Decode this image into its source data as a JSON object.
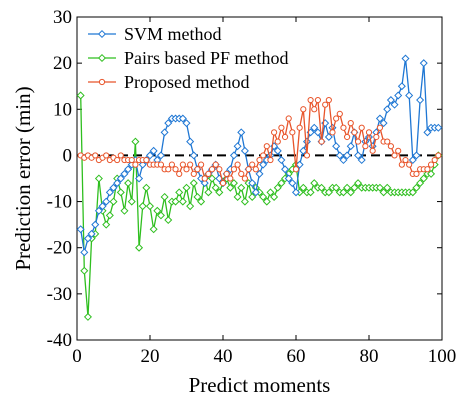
{
  "chart_data": {
    "type": "line",
    "title": "",
    "xlabel": "Predict moments",
    "ylabel": "Prediction error (min)",
    "xlim": [
      0,
      100
    ],
    "ylim": [
      -40,
      30
    ],
    "xticks": [
      0,
      20,
      40,
      60,
      80,
      100
    ],
    "yticks": [
      30,
      20,
      10,
      0,
      -10,
      -20,
      -30,
      -40
    ],
    "grid": false,
    "legend_position": "top-left",
    "reference_line": {
      "y": 0,
      "style": "dashed",
      "color": "#000000"
    },
    "series": [
      {
        "name": "SVM method",
        "color": "#1f77d4",
        "marker": "diamond",
        "x": [
          1,
          2,
          3,
          4,
          5,
          6,
          7,
          8,
          9,
          10,
          11,
          12,
          13,
          14,
          15,
          16,
          17,
          18,
          19,
          20,
          21,
          22,
          23,
          24,
          25,
          26,
          27,
          28,
          29,
          30,
          31,
          32,
          33,
          34,
          35,
          36,
          37,
          38,
          39,
          40,
          41,
          42,
          43,
          44,
          45,
          46,
          47,
          48,
          49,
          50,
          51,
          52,
          53,
          54,
          55,
          56,
          57,
          58,
          59,
          60,
          61,
          62,
          63,
          64,
          65,
          66,
          67,
          68,
          69,
          70,
          71,
          72,
          73,
          74,
          75,
          76,
          77,
          78,
          79,
          80,
          81,
          82,
          83,
          84,
          85,
          86,
          87,
          88,
          89,
          90,
          91,
          92,
          93,
          94,
          95,
          96,
          97,
          98,
          99
        ],
        "y": [
          -16,
          -21,
          -18,
          -17,
          -15,
          -12,
          -11,
          -10,
          -8,
          -7,
          -6,
          -5,
          -4,
          -3,
          -2,
          -1,
          -5,
          -2,
          -1,
          0,
          1,
          -1,
          0,
          5,
          7,
          8,
          8,
          8,
          8,
          7,
          3,
          0,
          -3,
          -5,
          -6,
          -4,
          -3,
          -2,
          -5,
          -6,
          -4,
          -3,
          0,
          2,
          5,
          1,
          -3,
          -6,
          -8,
          -4,
          -2,
          -1,
          0,
          2,
          1,
          -1,
          -3,
          -5,
          -6,
          -8,
          -2,
          1,
          3,
          5,
          6,
          5,
          3,
          7,
          4,
          6,
          2,
          0,
          -1,
          0,
          2,
          5,
          0,
          -1,
          3,
          4,
          2,
          5,
          8,
          7,
          10,
          12,
          11,
          13,
          15,
          21,
          13,
          -1,
          0,
          12,
          20,
          5,
          6,
          6,
          6
        ]
      },
      {
        "name": "Pairs based PF method",
        "color": "#2fbf1f",
        "marker": "diamond",
        "x": [
          1,
          2,
          3,
          4,
          5,
          6,
          7,
          8,
          9,
          10,
          11,
          12,
          13,
          14,
          15,
          16,
          17,
          18,
          19,
          20,
          21,
          22,
          23,
          24,
          25,
          26,
          27,
          28,
          29,
          30,
          31,
          32,
          33,
          34,
          35,
          36,
          37,
          38,
          39,
          40,
          41,
          42,
          43,
          44,
          45,
          46,
          47,
          48,
          49,
          50,
          51,
          52,
          53,
          54,
          55,
          56,
          57,
          58,
          59,
          60,
          61,
          62,
          63,
          64,
          65,
          66,
          67,
          68,
          69,
          70,
          71,
          72,
          73,
          74,
          75,
          76,
          77,
          78,
          79,
          80,
          81,
          82,
          83,
          84,
          85,
          86,
          87,
          88,
          89,
          90,
          91,
          92,
          93,
          94,
          95,
          96,
          97,
          98,
          99
        ],
        "y": [
          13,
          -25,
          -35,
          -18,
          -17,
          -5,
          -12,
          -15,
          -13,
          -10,
          -5,
          -8,
          -12,
          -6,
          -10,
          3,
          -20,
          -11,
          -7,
          -11,
          -16,
          -12,
          -13,
          -9,
          -14,
          -10,
          -10,
          -8,
          -10,
          -7,
          -11,
          -6,
          -9,
          -10,
          -5,
          -8,
          -5,
          -7,
          -8,
          -6,
          -5,
          -7,
          -6,
          -9,
          -7,
          -10,
          -6,
          -9,
          -7,
          -8,
          -9,
          -10,
          -8,
          -9,
          -7,
          -6,
          -5,
          -4,
          -3,
          -2,
          -8,
          -7,
          -8,
          -8,
          -6,
          -7,
          -7,
          -8,
          -8,
          -7,
          -7,
          -8,
          -8,
          -7,
          -8,
          -7,
          -6,
          -7,
          -7,
          -7,
          -7,
          -7,
          -7,
          -8,
          -7,
          -8,
          -8,
          -8,
          -8,
          -8,
          -8,
          -8,
          -7,
          -6,
          -5,
          -4,
          -4,
          -2,
          0
        ]
      },
      {
        "name": "Proposed method",
        "color": "#e8542a",
        "marker": "circle",
        "x": [
          1,
          2,
          3,
          4,
          5,
          6,
          7,
          8,
          9,
          10,
          11,
          12,
          13,
          14,
          15,
          16,
          17,
          18,
          19,
          20,
          21,
          22,
          23,
          24,
          25,
          26,
          27,
          28,
          29,
          30,
          31,
          32,
          33,
          34,
          35,
          36,
          37,
          38,
          39,
          40,
          41,
          42,
          43,
          44,
          45,
          46,
          47,
          48,
          49,
          50,
          51,
          52,
          53,
          54,
          55,
          56,
          57,
          58,
          59,
          60,
          61,
          62,
          63,
          64,
          65,
          66,
          67,
          68,
          69,
          70,
          71,
          72,
          73,
          74,
          75,
          76,
          77,
          78,
          79,
          80,
          81,
          82,
          83,
          84,
          85,
          86,
          87,
          88,
          89,
          90,
          91,
          92,
          93,
          94,
          95,
          96,
          97,
          98,
          99
        ],
        "y": [
          0,
          -0.5,
          0,
          -0.5,
          0,
          -1,
          -0.5,
          0,
          -1,
          -0.5,
          -1,
          0,
          -1,
          -1,
          -1,
          -2,
          -1,
          -1,
          -1,
          -2,
          -2,
          -2,
          -2,
          -3,
          -3,
          -2,
          -3,
          -4,
          -2,
          -3,
          -2,
          -4,
          -3,
          -2,
          -5,
          -4,
          -3,
          -2,
          -3,
          -6,
          -4,
          -5,
          -3,
          -2,
          -4,
          -5,
          -3,
          -2,
          -3,
          -1,
          0,
          2,
          -1,
          5,
          3,
          6,
          4,
          8,
          5,
          -3,
          6,
          10,
          0,
          12,
          10,
          12,
          3,
          11,
          12,
          5,
          8,
          9,
          6,
          4,
          7,
          5,
          3,
          6,
          2,
          5,
          1,
          4,
          6,
          3,
          3,
          2,
          0,
          1,
          -2,
          -1,
          -2,
          -4,
          -4,
          -3,
          -3,
          -3,
          -2,
          -1,
          0
        ]
      }
    ]
  }
}
